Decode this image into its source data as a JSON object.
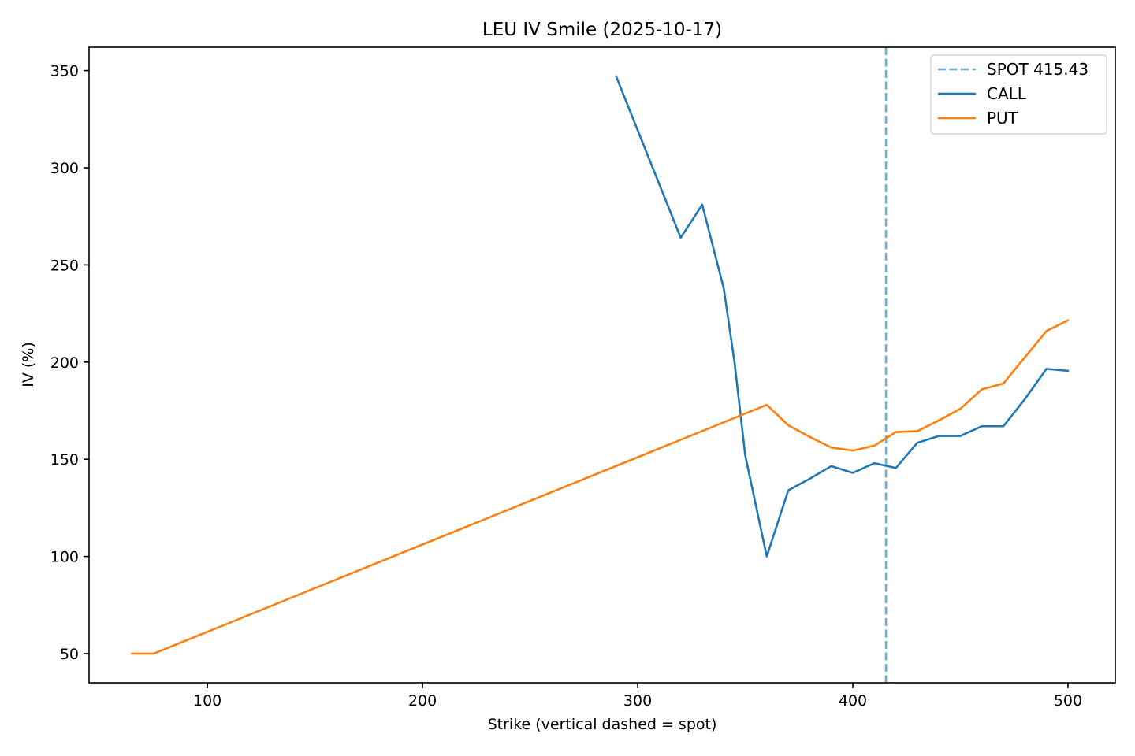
{
  "chart_data": {
    "type": "line",
    "title": "LEU IV Smile (2025-10-17)",
    "xlabel": "Strike (vertical dashed = spot)",
    "ylabel": "IV (%)",
    "xlim": [
      45,
      522
    ],
    "ylim": [
      35,
      362
    ],
    "xticks": [
      100,
      200,
      300,
      400,
      500
    ],
    "yticks": [
      50,
      100,
      150,
      200,
      250,
      300,
      350
    ],
    "grid": false,
    "legend_position": "top-right",
    "spot": {
      "label": "SPOT 415.43",
      "value": 415.43,
      "color": "#6baed6"
    },
    "series": [
      {
        "name": "CALL",
        "color": "#1f77b4",
        "x": [
          290,
          320,
          330,
          340,
          345,
          350,
          360,
          370,
          380,
          390,
          400,
          410,
          420,
          430,
          440,
          450,
          460,
          470,
          480,
          490,
          500
        ],
        "y": [
          347,
          264,
          281,
          238,
          200,
          152,
          100,
          134,
          140,
          146.5,
          143,
          148,
          145.5,
          158.5,
          162,
          162,
          167,
          167,
          181,
          196.5,
          195.5
        ]
      },
      {
        "name": "PUT",
        "color": "#ff7f0e",
        "x": [
          65,
          75,
          360,
          370,
          380,
          390,
          400,
          410,
          420,
          430,
          440,
          450,
          460,
          470,
          480,
          490,
          500
        ],
        "y": [
          50,
          50,
          178,
          167.5,
          161.5,
          156,
          154.5,
          157,
          164,
          164.5,
          170,
          176,
          186,
          189,
          202.5,
          216,
          221.5
        ]
      }
    ]
  }
}
